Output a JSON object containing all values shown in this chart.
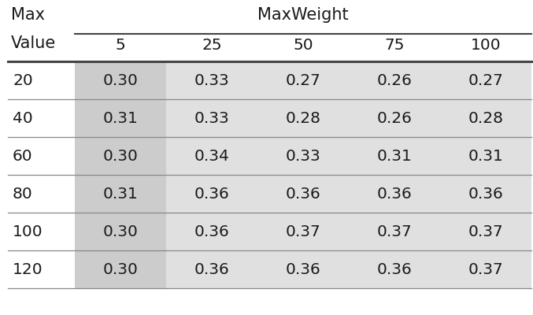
{
  "col_header_main": "MaxWeight",
  "col_header_sub": [
    "5",
    "25",
    "50",
    "75",
    "100"
  ],
  "row_header_label_line1": "Max",
  "row_header_label_line2": "Value",
  "row_labels": [
    "20",
    "40",
    "60",
    "80",
    "100",
    "120"
  ],
  "table_data": [
    [
      "0.30",
      "0.33",
      "0.27",
      "0.26",
      "0.27"
    ],
    [
      "0.31",
      "0.33",
      "0.28",
      "0.26",
      "0.28"
    ],
    [
      "0.30",
      "0.34",
      "0.33",
      "0.31",
      "0.31"
    ],
    [
      "0.31",
      "0.36",
      "0.36",
      "0.36",
      "0.36"
    ],
    [
      "0.30",
      "0.36",
      "0.37",
      "0.37",
      "0.37"
    ],
    [
      "0.30",
      "0.36",
      "0.36",
      "0.36",
      "0.37"
    ]
  ],
  "bg_white": "#ffffff",
  "bg_medium_gray": "#cccccc",
  "bg_light_gray": "#e0e0e0",
  "line_color_dark": "#444444",
  "line_color_light": "#888888",
  "text_color": "#1a1a1a",
  "fontsize": 13.5
}
